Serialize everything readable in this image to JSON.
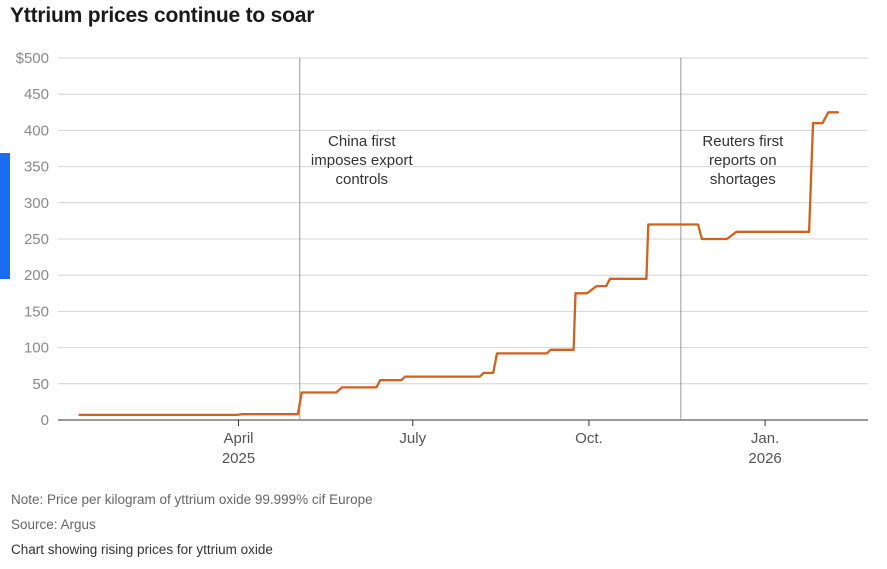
{
  "title": "Yttrium prices continue to soar",
  "footer": {
    "note": "Note: Price per kilogram of yttrium oxide 99.999% cif Europe",
    "source": "Source: Argus",
    "description": "Chart showing rising prices for yttrium oxide"
  },
  "colors": {
    "line": "#d2611c",
    "grid": "#d4d4d4",
    "accent": "#1a6cf0",
    "annotation_line": "#999999"
  },
  "chart_data": {
    "type": "line",
    "title": "Yttrium prices continue to soar",
    "xlabel": "",
    "ylabel": "",
    "ylim": [
      0,
      500
    ],
    "xlim": [
      "2025-01-03",
      "2026-02-18"
    ],
    "grid": true,
    "y_ticks": [
      {
        "value": 0,
        "label": "0"
      },
      {
        "value": 50,
        "label": "50"
      },
      {
        "value": 100,
        "label": "100"
      },
      {
        "value": 150,
        "label": "150"
      },
      {
        "value": 200,
        "label": "200"
      },
      {
        "value": 250,
        "label": "250"
      },
      {
        "value": 300,
        "label": "300"
      },
      {
        "value": 350,
        "label": "350"
      },
      {
        "value": 400,
        "label": "400"
      },
      {
        "value": 450,
        "label": "450"
      },
      {
        "value": 500,
        "label": "$500"
      }
    ],
    "x_ticks": [
      {
        "date": "2025-04-01",
        "label": "April",
        "sublabel": "2025"
      },
      {
        "date": "2025-07-01",
        "label": "July",
        "sublabel": ""
      },
      {
        "date": "2025-10-01",
        "label": "Oct.",
        "sublabel": ""
      },
      {
        "date": "2026-01-01",
        "label": "Jan.",
        "sublabel": "2026"
      }
    ],
    "series": [
      {
        "name": "",
        "points": [
          [
            "2025-01-08",
            7
          ],
          [
            "2025-03-31",
            7
          ],
          [
            "2025-04-03",
            8
          ],
          [
            "2025-05-02",
            8
          ],
          [
            "2025-05-04",
            38
          ],
          [
            "2025-05-22",
            38
          ],
          [
            "2025-05-25",
            45
          ],
          [
            "2025-06-12",
            45
          ],
          [
            "2025-06-14",
            55
          ],
          [
            "2025-06-25",
            55
          ],
          [
            "2025-06-27",
            60
          ],
          [
            "2025-08-05",
            60
          ],
          [
            "2025-08-07",
            65
          ],
          [
            "2025-08-12",
            65
          ],
          [
            "2025-08-14",
            92
          ],
          [
            "2025-09-09",
            92
          ],
          [
            "2025-09-11",
            97
          ],
          [
            "2025-09-23",
            97
          ],
          [
            "2025-09-24",
            175
          ],
          [
            "2025-09-30",
            175
          ],
          [
            "2025-10-05",
            185
          ],
          [
            "2025-10-10",
            185
          ],
          [
            "2025-10-12",
            195
          ],
          [
            "2025-10-31",
            195
          ],
          [
            "2025-11-01",
            270
          ],
          [
            "2025-11-27",
            270
          ],
          [
            "2025-11-29",
            250
          ],
          [
            "2025-12-12",
            250
          ],
          [
            "2025-12-17",
            260
          ],
          [
            "2026-01-24",
            260
          ],
          [
            "2026-01-26",
            410
          ],
          [
            "2026-01-31",
            410
          ],
          [
            "2026-02-03",
            425
          ],
          [
            "2026-02-08",
            425
          ]
        ]
      }
    ],
    "annotations": [
      {
        "date": "2025-05-03",
        "lines": [
          "China first",
          "imposes export",
          "controls"
        ]
      },
      {
        "date": "2025-11-18",
        "lines": [
          "Reuters first",
          "reports on",
          "shortages"
        ]
      }
    ]
  }
}
